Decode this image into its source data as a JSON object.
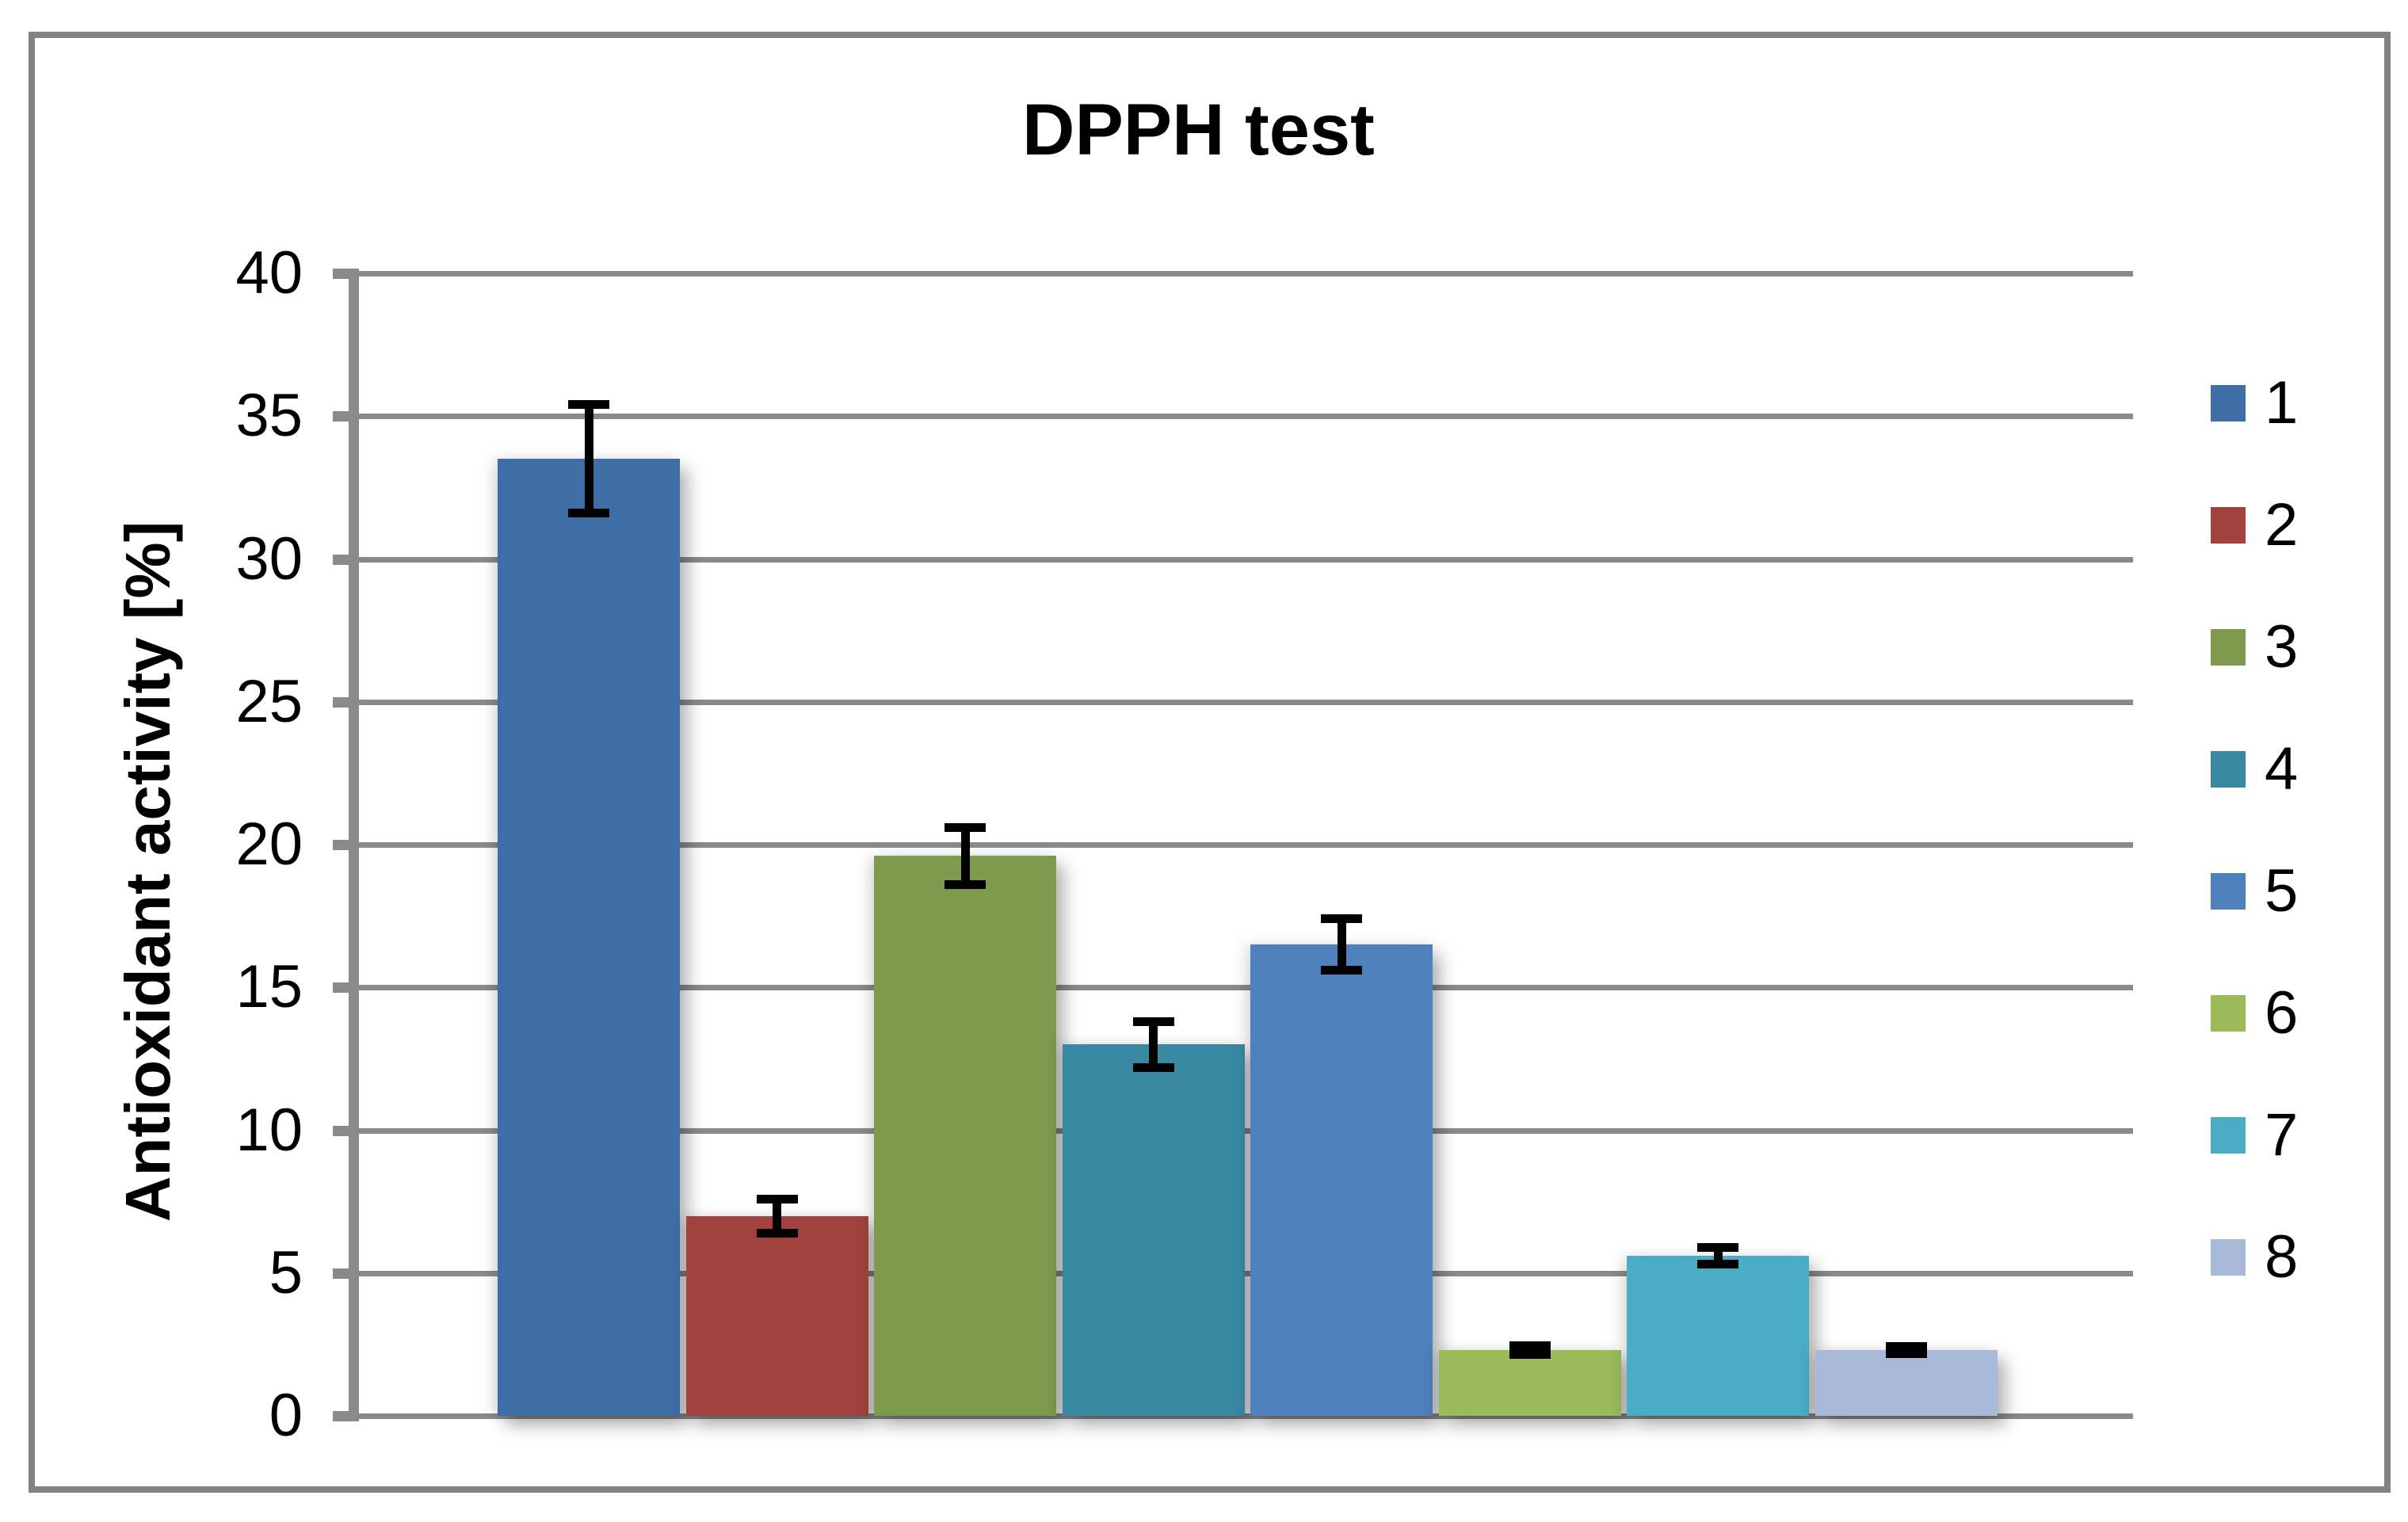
{
  "chart_data": {
    "type": "bar",
    "title": "DPPH test",
    "ylabel": "Antioxidant activity [%]",
    "xlabel": "",
    "categories": [
      "1",
      "2",
      "3",
      "4",
      "5",
      "6",
      "7",
      "8"
    ],
    "values": [
      33.5,
      7.0,
      19.6,
      13.0,
      16.5,
      2.3,
      5.6,
      2.3
    ],
    "error_bars": [
      1.9,
      0.6,
      1.0,
      0.8,
      0.9,
      0.15,
      0.3,
      0.12
    ],
    "bar_colors": [
      "#3F6EA6",
      "#A2423F",
      "#7E9A4D",
      "#3989A3",
      "#4F81BD",
      "#9BBB59",
      "#4BACC6",
      "#A8B8D7"
    ],
    "ylim": [
      0,
      40
    ],
    "yticks": [
      0,
      5,
      10,
      15,
      20,
      25,
      30,
      35,
      40
    ],
    "grid": true,
    "legend_position": "right",
    "legend_labels": [
      "1",
      "2",
      "3",
      "4",
      "5",
      "6",
      "7",
      "8"
    ]
  },
  "colors": {
    "gridline": "#8A8A8A",
    "axis": "#8A8A8A",
    "frame_border": "#828282",
    "error_bar": "#000000",
    "text": "#000000",
    "background": "#FFFFFF"
  }
}
